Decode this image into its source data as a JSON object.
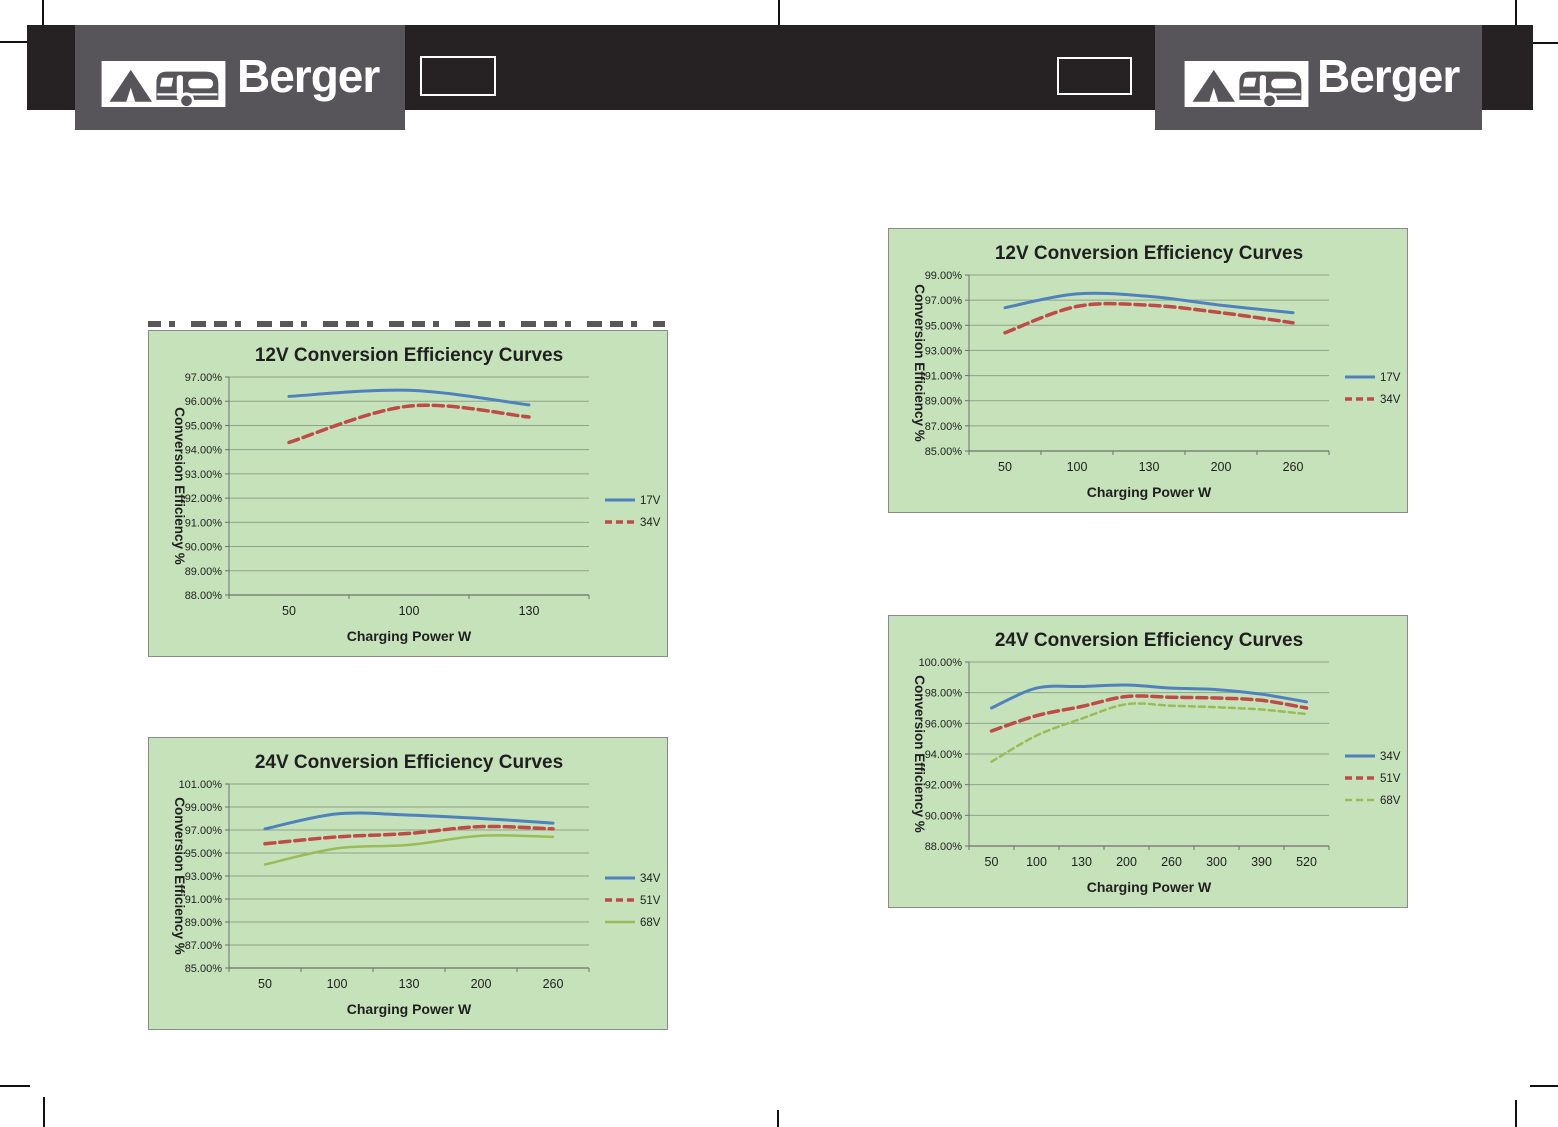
{
  "header": {
    "brand": "Berger",
    "bar_color": "#262223",
    "block_color": "#57545a"
  },
  "colors": {
    "panel_bg": "#c6e2ba",
    "grid": "#8da387",
    "axis": "#6f6f6f",
    "text": "#1f1f1f",
    "blue": "#4f81bd",
    "red": "#be4b48",
    "green": "#9bbb59"
  },
  "chart_data": [
    {
      "type": "line",
      "title": "12V Conversion Efficiency Curves",
      "xlabel": "Charging Power W",
      "ylabel": "Conversion Efficiency %",
      "categories": [
        "50",
        "100",
        "130"
      ],
      "ylim": [
        88,
        97
      ],
      "ystep": 1,
      "grid": true,
      "legend_position": "right",
      "series": [
        {
          "name": "17V",
          "color": "#4f81bd",
          "dash": "",
          "width": 3,
          "values": [
            96.2,
            96.45,
            95.85
          ]
        },
        {
          "name": "34V",
          "color": "#be4b48",
          "dash": "10 5",
          "width": 3.5,
          "values": [
            94.3,
            95.8,
            95.35
          ]
        }
      ]
    },
    {
      "type": "line",
      "title": "24V Conversion Efficiency Curves",
      "xlabel": "Charging Power W",
      "ylabel": "Conversion Efficiency %",
      "categories": [
        "50",
        "100",
        "130",
        "200",
        "260"
      ],
      "ylim": [
        85,
        101
      ],
      "ystep": 2,
      "grid": true,
      "legend_position": "right",
      "series": [
        {
          "name": "34V",
          "color": "#4f81bd",
          "dash": "",
          "width": 3,
          "values": [
            97.1,
            98.4,
            98.3,
            98.0,
            97.6
          ]
        },
        {
          "name": "51V",
          "color": "#be4b48",
          "dash": "10 5",
          "width": 3.5,
          "values": [
            95.8,
            96.4,
            96.7,
            97.3,
            97.1
          ]
        },
        {
          "name": "68V",
          "color": "#9bbb59",
          "dash": "",
          "width": 2.5,
          "values": [
            94.0,
            95.4,
            95.7,
            96.5,
            96.4
          ]
        }
      ]
    },
    {
      "type": "line",
      "title": "12V Conversion Efficiency Curves",
      "xlabel": "Charging Power W",
      "ylabel": "Conversion Efficiency %",
      "categories": [
        "50",
        "100",
        "130",
        "200",
        "260"
      ],
      "ylim": [
        85,
        99
      ],
      "ystep": 2,
      "grid": true,
      "legend_position": "right",
      "series": [
        {
          "name": "17V",
          "color": "#4f81bd",
          "dash": "",
          "width": 3,
          "values": [
            96.4,
            97.5,
            97.3,
            96.6,
            96.0
          ]
        },
        {
          "name": "34V",
          "color": "#be4b48",
          "dash": "10 5",
          "width": 3.5,
          "values": [
            94.4,
            96.5,
            96.6,
            96.0,
            95.2
          ]
        }
      ]
    },
    {
      "type": "line",
      "title": "24V Conversion Efficiency Curves",
      "xlabel": "Charging Power W",
      "ylabel": "Conversion Efficiency %",
      "categories": [
        "50",
        "100",
        "130",
        "200",
        "260",
        "300",
        "390",
        "520"
      ],
      "ylim": [
        88,
        100
      ],
      "ystep": 2,
      "grid": true,
      "legend_position": "right",
      "series": [
        {
          "name": "34V",
          "color": "#4f81bd",
          "dash": "",
          "width": 3,
          "values": [
            97.0,
            98.3,
            98.4,
            98.5,
            98.3,
            98.2,
            97.9,
            97.4
          ]
        },
        {
          "name": "51V",
          "color": "#be4b48",
          "dash": "10 5",
          "width": 3.5,
          "values": [
            95.5,
            96.5,
            97.1,
            97.75,
            97.7,
            97.65,
            97.5,
            97.0
          ]
        },
        {
          "name": "68V",
          "color": "#9bbb59",
          "dash": "6 4",
          "width": 2.5,
          "values": [
            93.5,
            95.2,
            96.3,
            97.25,
            97.15,
            97.05,
            96.9,
            96.6
          ]
        }
      ]
    }
  ]
}
